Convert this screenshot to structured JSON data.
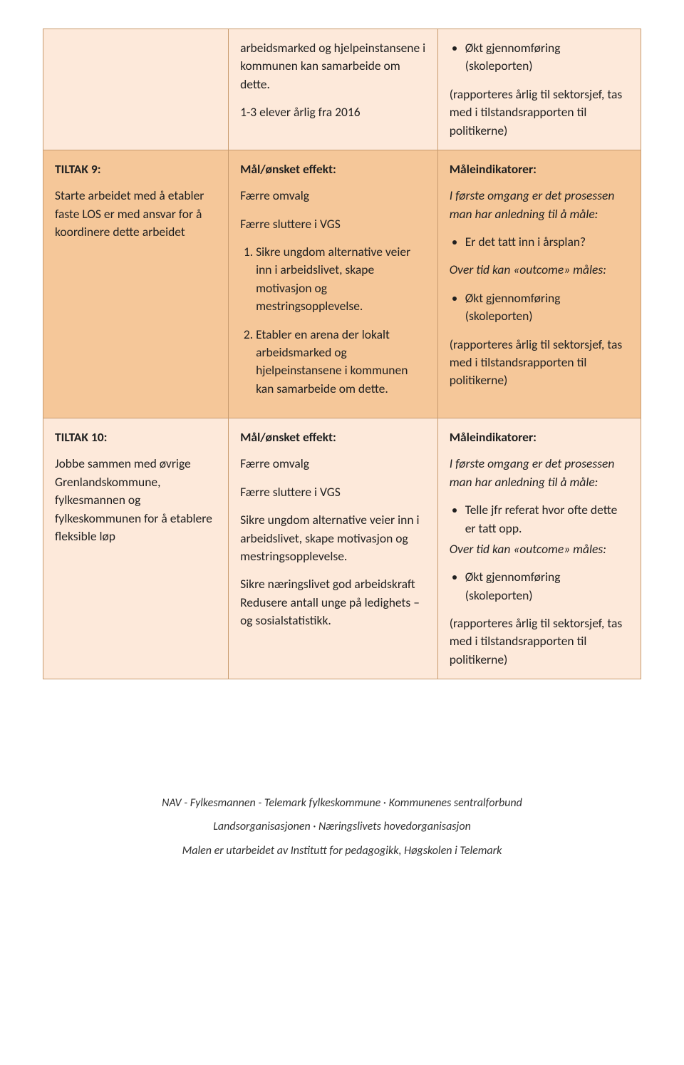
{
  "colors": {
    "cell_light": "#fde9da",
    "cell_dark": "#f5c799",
    "border": "#c89b6e",
    "text": "#202020",
    "page_bg": "#ffffff"
  },
  "typography": {
    "body_fontsize_pt": 13,
    "line_height": 1.45,
    "font_family": "Calibri"
  },
  "table": {
    "columns": [
      "col1",
      "col2",
      "col3"
    ],
    "col_widths_pct": [
      31,
      35,
      34
    ],
    "row0": {
      "c2": {
        "p1": "arbeidsmarked og hjelpeinstansene i kommunen kan samarbeide om dette.",
        "p2": "1-3 elever årlig fra 2016"
      },
      "c3": {
        "b1": "Økt gjennomføring (skoleporten)",
        "p1": "(rapporteres årlig til sektorsjef, tas med i tilstandsrapporten til politikerne)"
      }
    },
    "row1": {
      "c1": {
        "title": "TILTAK 9:",
        "body": "Starte arbeidet med å etabler faste LOS er med ansvar for å koordinere dette arbeidet"
      },
      "c2": {
        "title": "Mål/ønsket effekt:",
        "p1": "Færre omvalg",
        "p2": "Færre sluttere i VGS",
        "n1": "Sikre ungdom alternative veier inn i arbeidslivet, skape motivasjon og mestringsopplevelse.",
        "n2": "Etabler en arena der lokalt arbeidsmarked og hjelpeinstansene i kommunen kan samarbeide om dette."
      },
      "c3": {
        "title": "Måleindikatorer:",
        "intro": "I første omgang er det prosessen man har anledning til å måle:",
        "b1": "Er det tatt inn i årsplan?",
        "outcome": "Over tid kan «outcome» måles:",
        "b2": "Økt gjennomføring (skoleporten)",
        "p1": "(rapporteres årlig til sektorsjef, tas med i tilstandsrapporten til politikerne)"
      }
    },
    "row2": {
      "c1": {
        "title": "TILTAK 10:",
        "body": "Jobbe sammen med øvrige Grenlandskommune, fylkesmannen og fylkeskommunen for å etablere fleksible løp"
      },
      "c2": {
        "title": "Mål/ønsket effekt:",
        "p1": "Færre omvalg",
        "p2": "Færre sluttere i VGS",
        "p3": "Sikre ungdom alternative veier inn i arbeidslivet, skape motivasjon og mestringsopplevelse.",
        "p4": "Sikre næringslivet god arbeidskraft",
        "p5": "Redusere antall unge på ledighets –og sosialstatistikk."
      },
      "c3": {
        "title": "Måleindikatorer:",
        "intro": "I første omgang er det prosessen man har anledning til å måle:",
        "b1": "Telle jfr referat hvor ofte dette er tatt opp.",
        "outcome": "Over tid kan «outcome» måles:",
        "b2": "Økt gjennomføring (skoleporten)",
        "p1": "(rapporteres årlig til sektorsjef, tas med i tilstandsrapporten til politikerne)"
      }
    }
  },
  "footer": {
    "l1a": "NAV - Fylkesmannen - Telemark fylkeskommune",
    "l1b": "Kommunenes sentralforbund",
    "l2a": "Landsorganisasjonen",
    "l2b": "Næringslivets hovedorganisasjon",
    "l3": "Malen er utarbeidet av Institutt for pedagogikk, Høgskolen i Telemark"
  }
}
